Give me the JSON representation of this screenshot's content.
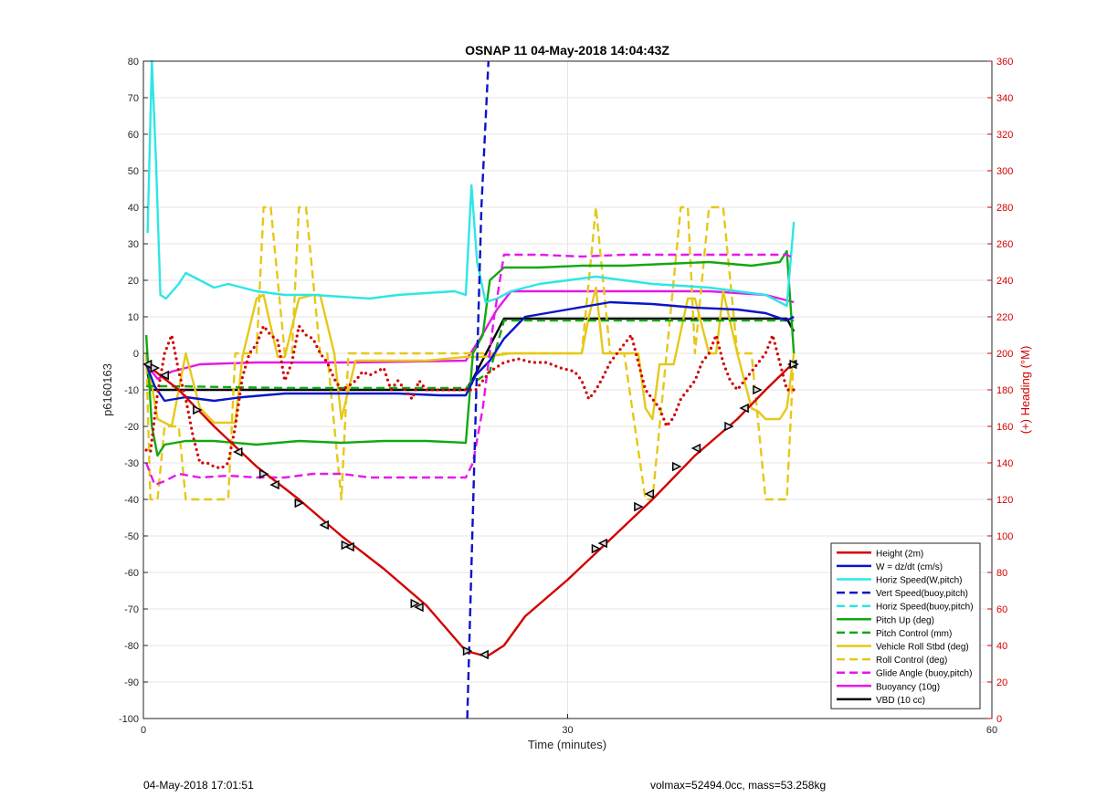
{
  "chart_data": {
    "type": "line",
    "title": "OSNAP 11 04-May-2018 14:04:43Z",
    "xlabel": "Time (minutes)",
    "ylabel": "p6160163",
    "y2label": "(+) Heading (°M)",
    "xlim": [
      0,
      60
    ],
    "ylim": [
      -100,
      80
    ],
    "y2lim": [
      0,
      360
    ],
    "xticks": [
      0,
      30,
      60
    ],
    "yticks": [
      -100,
      -90,
      -80,
      -70,
      -60,
      -50,
      -40,
      -30,
      -20,
      -10,
      0,
      10,
      20,
      30,
      40,
      50,
      60,
      70,
      80
    ],
    "y2ticks": [
      0,
      20,
      40,
      60,
      80,
      100,
      120,
      140,
      160,
      180,
      200,
      220,
      240,
      260,
      280,
      300,
      320,
      340,
      360
    ],
    "grid": true,
    "legend_position": "bottom-right",
    "series": [
      {
        "name": "Height (2m)",
        "color": "#d40000",
        "style": "solid",
        "x": [
          0.2,
          2.5,
          5,
          8,
          11,
          14,
          17,
          20,
          22.8,
          24.3,
          25.5,
          27,
          30,
          33,
          36,
          39,
          42,
          44,
          46
        ],
        "y": [
          -3,
          -10,
          -20,
          -31,
          -40,
          -50,
          -59,
          -69,
          -81.5,
          -83,
          -80,
          -72,
          -62,
          -51,
          -40,
          -28,
          -18,
          -10,
          -2.5
        ]
      },
      {
        "name": "W = dz/dt (cm/s)",
        "color": "#0a14c8",
        "style": "solid",
        "x": [
          0.2,
          0.8,
          1.5,
          3,
          5,
          7,
          10,
          14,
          18,
          21,
          22.8,
          23.5,
          24.5,
          25.5,
          27,
          30,
          33,
          36,
          39,
          42,
          44,
          45.5,
          46
        ],
        "y": [
          -3,
          -9,
          -13,
          -12,
          -13,
          -12,
          -11,
          -11,
          -11,
          -11.5,
          -11.5,
          -6,
          -2,
          4,
          10,
          12,
          14,
          13.5,
          12.5,
          12,
          11,
          9,
          10
        ]
      },
      {
        "name": "Horiz Speed(W,pitch)",
        "color": "#2ee6e6",
        "style": "solid",
        "x": [
          0.3,
          0.6,
          0.9,
          1.2,
          1.6,
          2.5,
          3,
          4,
          5,
          6,
          8,
          10,
          12,
          14,
          16,
          18,
          20,
          22,
          22.8,
          23.2,
          23.6,
          24.2,
          25,
          26,
          28,
          30,
          32,
          34,
          36,
          38,
          40,
          42,
          44,
          45.5,
          46
        ],
        "y": [
          33,
          80,
          52,
          16,
          15,
          19,
          22,
          20,
          18,
          19,
          17,
          16,
          16,
          15.5,
          15,
          16,
          16.5,
          17,
          16,
          46,
          25,
          14,
          15,
          17,
          19,
          20,
          21,
          20,
          19,
          18.5,
          18,
          17,
          16,
          13,
          36
        ]
      },
      {
        "name": "Vert Speed(buoy,pitch)",
        "color": "#0a14c8",
        "style": "dashed",
        "x": [
          22.9,
          23.4,
          23.9,
          24.4
        ],
        "y": [
          -100,
          -30,
          40,
          80
        ]
      },
      {
        "name": "Horiz Speed(buoy,pitch)",
        "color": "#2ee6e6",
        "style": "dashed",
        "x": [],
        "y": []
      },
      {
        "name": "Pitch Up (deg)",
        "color": "#12a812",
        "style": "solid",
        "x": [
          0.2,
          0.6,
          1,
          1.5,
          3,
          5,
          8,
          11,
          14,
          17,
          20,
          22.8,
          23.3,
          24,
          24.5,
          25.5,
          28,
          31,
          34,
          37,
          40,
          43,
          45,
          45.5,
          46
        ],
        "y": [
          5,
          -20,
          -28,
          -25,
          -24,
          -24,
          -25,
          -24,
          -24.5,
          -24,
          -24,
          -24.5,
          0,
          5,
          20,
          23.5,
          23.5,
          24,
          24,
          24.5,
          25,
          24,
          25,
          28,
          0
        ]
      },
      {
        "name": "Pitch Control (mm)",
        "color": "#12a812",
        "style": "dashed",
        "x": [
          0.2,
          2,
          10,
          20,
          22.8,
          24.5,
          25.5,
          35,
          46
        ],
        "y": [
          -9,
          -9,
          -9.5,
          -9.5,
          -9.5,
          -5,
          9,
          9,
          9
        ]
      },
      {
        "name": "Vehicle Roll Stbd (deg)",
        "color": "#e6c819",
        "style": "solid",
        "x": [
          0.2,
          1,
          2,
          3,
          4,
          5,
          6.5,
          7,
          8,
          8.5,
          9.5,
          10,
          11,
          12,
          12.5,
          13.5,
          14,
          15,
          20,
          22.8,
          24,
          26,
          31,
          31.5,
          32,
          32.5,
          33,
          35,
          35.5,
          36,
          36.5,
          37,
          37.5,
          38.5,
          39,
          40,
          40.5,
          41,
          42,
          43,
          43.5,
          44,
          45,
          45.5,
          46
        ],
        "y": [
          0,
          -18,
          -20,
          0,
          -15,
          -19,
          -19,
          -1,
          15,
          16,
          -1,
          -1,
          15,
          16,
          16,
          0,
          -18,
          -2,
          -2,
          -1,
          -1,
          0,
          0,
          10,
          18,
          0,
          0,
          0,
          -15,
          -18,
          -3,
          -3,
          -3,
          15,
          15,
          0,
          0,
          17,
          0,
          -15,
          -16,
          -18,
          -18,
          -15,
          0
        ]
      },
      {
        "name": "Roll Control (deg)",
        "color": "#e6c819",
        "style": "dashed",
        "x": [
          0.2,
          0.5,
          1,
          1.5,
          2.5,
          3,
          4,
          4.5,
          6,
          6.5,
          8,
          8.5,
          9,
          10,
          10.5,
          11,
          11.5,
          12.5,
          13,
          14,
          14.5,
          15.5,
          20,
          22.8,
          31,
          32,
          33,
          34,
          35.5,
          36,
          37,
          38,
          38.5,
          39,
          40,
          41,
          42,
          43,
          44,
          45,
          45.5,
          46
        ],
        "y": [
          0,
          -40,
          -40,
          -20,
          -20,
          -40,
          -40,
          -40,
          -40,
          0,
          0,
          40,
          40,
          0,
          0,
          40,
          40,
          0,
          0,
          -40,
          0,
          0,
          0,
          0,
          0,
          40,
          0,
          0,
          -40,
          -40,
          0,
          40,
          40,
          0,
          40,
          40,
          0,
          0,
          -40,
          -40,
          -40,
          0
        ]
      },
      {
        "name": "Glide Angle (buoy,pitch)",
        "color": "#e619e6",
        "style": "dashed",
        "x": [
          0.2,
          0.8,
          1.5,
          2.5,
          4,
          6,
          8,
          10,
          12,
          14,
          16,
          18,
          20,
          22.8,
          23.3,
          24,
          24.8,
          25.5,
          28,
          31,
          34,
          37,
          40,
          43,
          44.5,
          45.5,
          46
        ],
        "y": [
          -30,
          -36,
          -35,
          -33,
          -34,
          -33.5,
          -34,
          -34,
          -33,
          -33,
          -34,
          -34,
          -34,
          -34,
          -30,
          -15,
          10,
          27,
          27,
          26.5,
          27,
          27,
          27,
          27,
          27,
          27,
          26
        ]
      },
      {
        "name": "Buoyancy (10g)",
        "color": "#e619e6",
        "style": "solid",
        "x": [
          0.2,
          1,
          2,
          4,
          8,
          15,
          22.8,
          23.8,
          25,
          26,
          30,
          35,
          40,
          44,
          46
        ],
        "y": [
          -3,
          -7,
          -5,
          -3,
          -2.5,
          -2.5,
          -2,
          4,
          12,
          17,
          17,
          17,
          17,
          16,
          14
        ]
      },
      {
        "name": "VBD (10 cc)",
        "color": "#000000",
        "style": "solid",
        "x": [
          0.2,
          0.5,
          2,
          10,
          20,
          22.8,
          23.3,
          25.5,
          26,
          30,
          40,
          45.5,
          46
        ],
        "y": [
          -3,
          -10,
          -10,
          -10,
          -10,
          -10,
          -7,
          9.5,
          9.5,
          9.5,
          9.5,
          9.5,
          6
        ]
      },
      {
        "name": "Heading",
        "axis": "right",
        "color": "#d40000",
        "style": "dotted",
        "x": [
          0.2,
          0.5,
          1,
          1.5,
          2,
          2.5,
          3,
          3.5,
          4,
          4.5,
          5,
          5.5,
          6,
          6.5,
          7,
          7.5,
          8,
          8.5,
          9,
          9.5,
          10,
          10.5,
          11,
          11.5,
          12,
          12.5,
          13,
          13.5,
          14,
          14.5,
          15,
          15.5,
          16,
          16.5,
          17,
          17.5,
          18,
          18.5,
          19,
          19.5,
          20,
          23.5,
          24.5,
          25.5,
          26.5,
          27.5,
          28.5,
          29.5,
          30.5,
          31,
          31.5,
          32,
          32.5,
          33,
          33.5,
          34,
          34.5,
          35,
          35.5,
          36,
          36.5,
          37,
          37.5,
          38,
          38.5,
          39,
          39.5,
          40,
          40.5,
          41,
          41.5,
          42,
          42.5,
          43,
          43.5,
          44,
          44.5,
          45,
          45.5,
          46
        ],
        "y": [
          147,
          146,
          178,
          200,
          210,
          190,
          175,
          155,
          140,
          140,
          138,
          137,
          140,
          160,
          187,
          200,
          205,
          215,
          210,
          207,
          185,
          195,
          215,
          210,
          208,
          200,
          195,
          186,
          180,
          182,
          185,
          190,
          188,
          190,
          192,
          180,
          185,
          180,
          175,
          185,
          180,
          180,
          190,
          195,
          197,
          195,
          195,
          192,
          190,
          185,
          175,
          180,
          187,
          195,
          200,
          205,
          210,
          195,
          180,
          175,
          170,
          160,
          165,
          175,
          180,
          185,
          195,
          200,
          210,
          195,
          185,
          180,
          185,
          190,
          195,
          200,
          210,
          195,
          180,
          180
        ]
      }
    ]
  },
  "markers": {
    "x": [
      0.3,
      0.8,
      1.5,
      3.8,
      6.7,
      8.5,
      9.3,
      11,
      12.8,
      14.3,
      14.6,
      19.2,
      19.5,
      22.9,
      24.1,
      32,
      32.5,
      35,
      35.8,
      37.7,
      39.1,
      41.4,
      42.5,
      43.4,
      45.9,
      46
    ],
    "y": [
      -3,
      -4,
      -6,
      -15.5,
      -27,
      -33,
      -36,
      -41,
      -47,
      -52.5,
      -53,
      -68.5,
      -69.5,
      -81.5,
      -82.5,
      -53.5,
      -52,
      -42,
      -38.5,
      -31,
      -26,
      -20,
      -15,
      -10,
      -3,
      -3
    ]
  },
  "footer": {
    "left": "04-May-2018 17:01:51",
    "right": "volmax=52494.0cc, mass=53.258kg"
  }
}
